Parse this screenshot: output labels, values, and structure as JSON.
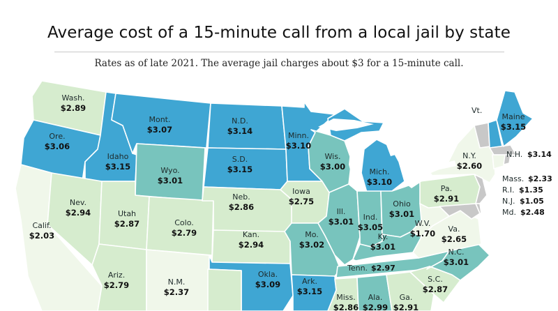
{
  "title": "Average cost of a 15-minute call from a local jail by state",
  "subtitle": "Rates as of late 2021. The average jail charges about $3 for a 15-minute call.",
  "colors": {
    "dark": "#3fa6d3",
    "teal": "#78c4bd",
    "light": "#d6ecce",
    "pale": "#f0f7ea",
    "gray": "#c8c8c8",
    "border": "#ffffff"
  },
  "states": {
    "WA": {
      "name": "Wash.",
      "value": "$2.89"
    },
    "OR": {
      "name": "Ore.",
      "value": "$3.06"
    },
    "ID": {
      "name": "Idaho",
      "value": "$3.15"
    },
    "MT": {
      "name": "Mont.",
      "value": "$3.07"
    },
    "ND": {
      "name": "N.D.",
      "value": "$3.14"
    },
    "SD": {
      "name": "S.D.",
      "value": "$3.15"
    },
    "MN": {
      "name": "Minn.",
      "value": "$3.10"
    },
    "WY": {
      "name": "Wyo.",
      "value": "$3.01"
    },
    "WI": {
      "name": "Wis.",
      "value": "$3.00"
    },
    "MI": {
      "name": "Mich.",
      "value": "$3.10"
    },
    "ME": {
      "name": "Maine",
      "value": "$3.15"
    },
    "NY": {
      "name": "N.Y.",
      "value": "$2.60"
    },
    "CA": {
      "name": "Calif.",
      "value": "$2.03"
    },
    "NV": {
      "name": "Nev.",
      "value": "$2.94"
    },
    "UT": {
      "name": "Utah",
      "value": "$2.87"
    },
    "CO": {
      "name": "Colo.",
      "value": "$2.79"
    },
    "NE": {
      "name": "Neb.",
      "value": "$2.86"
    },
    "IA": {
      "name": "Iowa",
      "value": "$2.75"
    },
    "KS": {
      "name": "Kan.",
      "value": "$2.94"
    },
    "MO": {
      "name": "Mo.",
      "value": "$3.02"
    },
    "IL": {
      "name": "Ill.",
      "value": "$3.01"
    },
    "IN": {
      "name": "Ind.",
      "value": "$3.05"
    },
    "OH": {
      "name": "Ohio",
      "value": "$3.01"
    },
    "PA": {
      "name": "Pa.",
      "value": "$2.91"
    },
    "KY": {
      "name": "Ky.",
      "value": "$3.01"
    },
    "WV": {
      "name": "W.V.",
      "value": "$1.70"
    },
    "VA": {
      "name": "Va.",
      "value": "$2.65"
    },
    "AZ": {
      "name": "Ariz.",
      "value": "$2.79"
    },
    "NM": {
      "name": "N.M.",
      "value": "$2.37"
    },
    "OK": {
      "name": "Okla.",
      "value": "$3.09"
    },
    "AR": {
      "name": "Ark.",
      "value": "$3.15"
    },
    "TN": {
      "name": "Tenn.",
      "value": "$2.97"
    },
    "NC": {
      "name": "N.C.",
      "value": "$3.01"
    },
    "SC": {
      "name": "S.C.",
      "value": "$2.87"
    },
    "MS": {
      "name": "Miss.",
      "value": "$2.86"
    },
    "AL": {
      "name": "Ala.",
      "value": "$2.99"
    },
    "GA": {
      "name": "Ga.",
      "value": "$2.91"
    },
    "NH": {
      "name": "N.H.",
      "value": "$3.14"
    },
    "MA": {
      "name": "Mass.",
      "value": "$2.33"
    },
    "RI": {
      "name": "R.I.",
      "value": "$1.35"
    },
    "NJ": {
      "name": "N.J.",
      "value": "$1.05"
    },
    "MD": {
      "name": "Md.",
      "value": "$2.48"
    },
    "VT": {
      "name": "Vt.",
      "value": ""
    }
  }
}
